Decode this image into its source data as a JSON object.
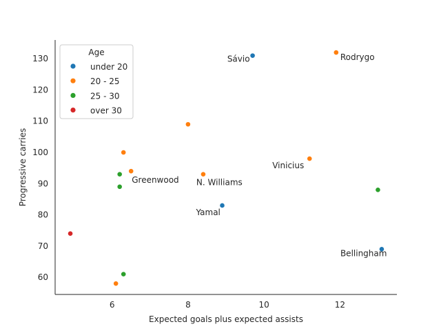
{
  "chart_data": {
    "type": "scatter",
    "title": "",
    "xlabel": "Expected goals plus expected assists",
    "ylabel": "Progressive carries",
    "xlim": [
      4.5,
      13.5
    ],
    "ylim": [
      54.5,
      136
    ],
    "xticks": [
      6,
      8,
      10,
      12
    ],
    "yticks": [
      60,
      70,
      80,
      90,
      100,
      110,
      120,
      130
    ],
    "grid": false,
    "legend": {
      "title": "Age",
      "placement": "top-left"
    },
    "series": [
      {
        "name": "under 20",
        "color": "#1f77b4",
        "points": [
          {
            "x": 9.7,
            "y": 131,
            "label": "Sávio"
          },
          {
            "x": 8.9,
            "y": 83,
            "label": "Yamal"
          },
          {
            "x": 13.1,
            "y": 69,
            "label": "Bellingham"
          }
        ]
      },
      {
        "name": "20 - 25",
        "color": "#ff7f0e",
        "points": [
          {
            "x": 11.9,
            "y": 132,
            "label": "Rodrygo"
          },
          {
            "x": 8.0,
            "y": 109,
            "label": ""
          },
          {
            "x": 6.3,
            "y": 100,
            "label": ""
          },
          {
            "x": 11.2,
            "y": 98,
            "label": "Vinicius"
          },
          {
            "x": 6.5,
            "y": 94,
            "label": "Greenwood"
          },
          {
            "x": 8.4,
            "y": 93,
            "label": "N. Williams"
          },
          {
            "x": 6.1,
            "y": 58,
            "label": ""
          }
        ]
      },
      {
        "name": "25 - 30",
        "color": "#2ca02c",
        "points": [
          {
            "x": 6.2,
            "y": 93,
            "label": ""
          },
          {
            "x": 6.2,
            "y": 89,
            "label": ""
          },
          {
            "x": 13.0,
            "y": 88,
            "label": ""
          },
          {
            "x": 6.3,
            "y": 61,
            "label": ""
          }
        ]
      },
      {
        "name": "over 30",
        "color": "#d62728",
        "points": [
          {
            "x": 4.9,
            "y": 74,
            "label": ""
          }
        ]
      }
    ]
  }
}
